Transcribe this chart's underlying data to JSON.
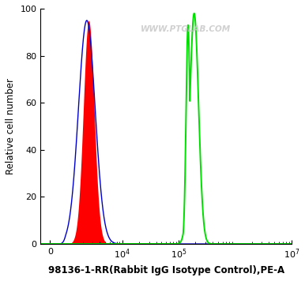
{
  "title": "98136-1-RR(Rabbit IgG Isotype Control),PE-A",
  "ylabel": "Relative cell number",
  "ylim": [
    0,
    100
  ],
  "watermark": "WWW.PTGLAB.COM",
  "watermark_color": "#c8c8c8",
  "bg_color": "#ffffff",
  "plot_bg_color": "#ffffff",
  "red_fill_color": "#ff0000",
  "blue_line_color": "#0000cc",
  "green_line_color": "#00dd00",
  "title_fontsize": 8.5,
  "ylabel_fontsize": 8.5,
  "tick_fontsize": 8,
  "linthresh": 1000,
  "linscale": 0.25,
  "xlim_left": -600,
  "xlim_right": 10000000.0,
  "red_mu_log": 7.85,
  "red_sigma_log": 0.22,
  "red_height": 95,
  "red_sigma_log_blue_extra": 0.12,
  "green_mu1_log": 12.15,
  "green_sigma1_log": 0.18,
  "green_height1": 98,
  "green_mu2_log": 11.9,
  "green_sigma2_log": 0.08,
  "green_height2": 93
}
